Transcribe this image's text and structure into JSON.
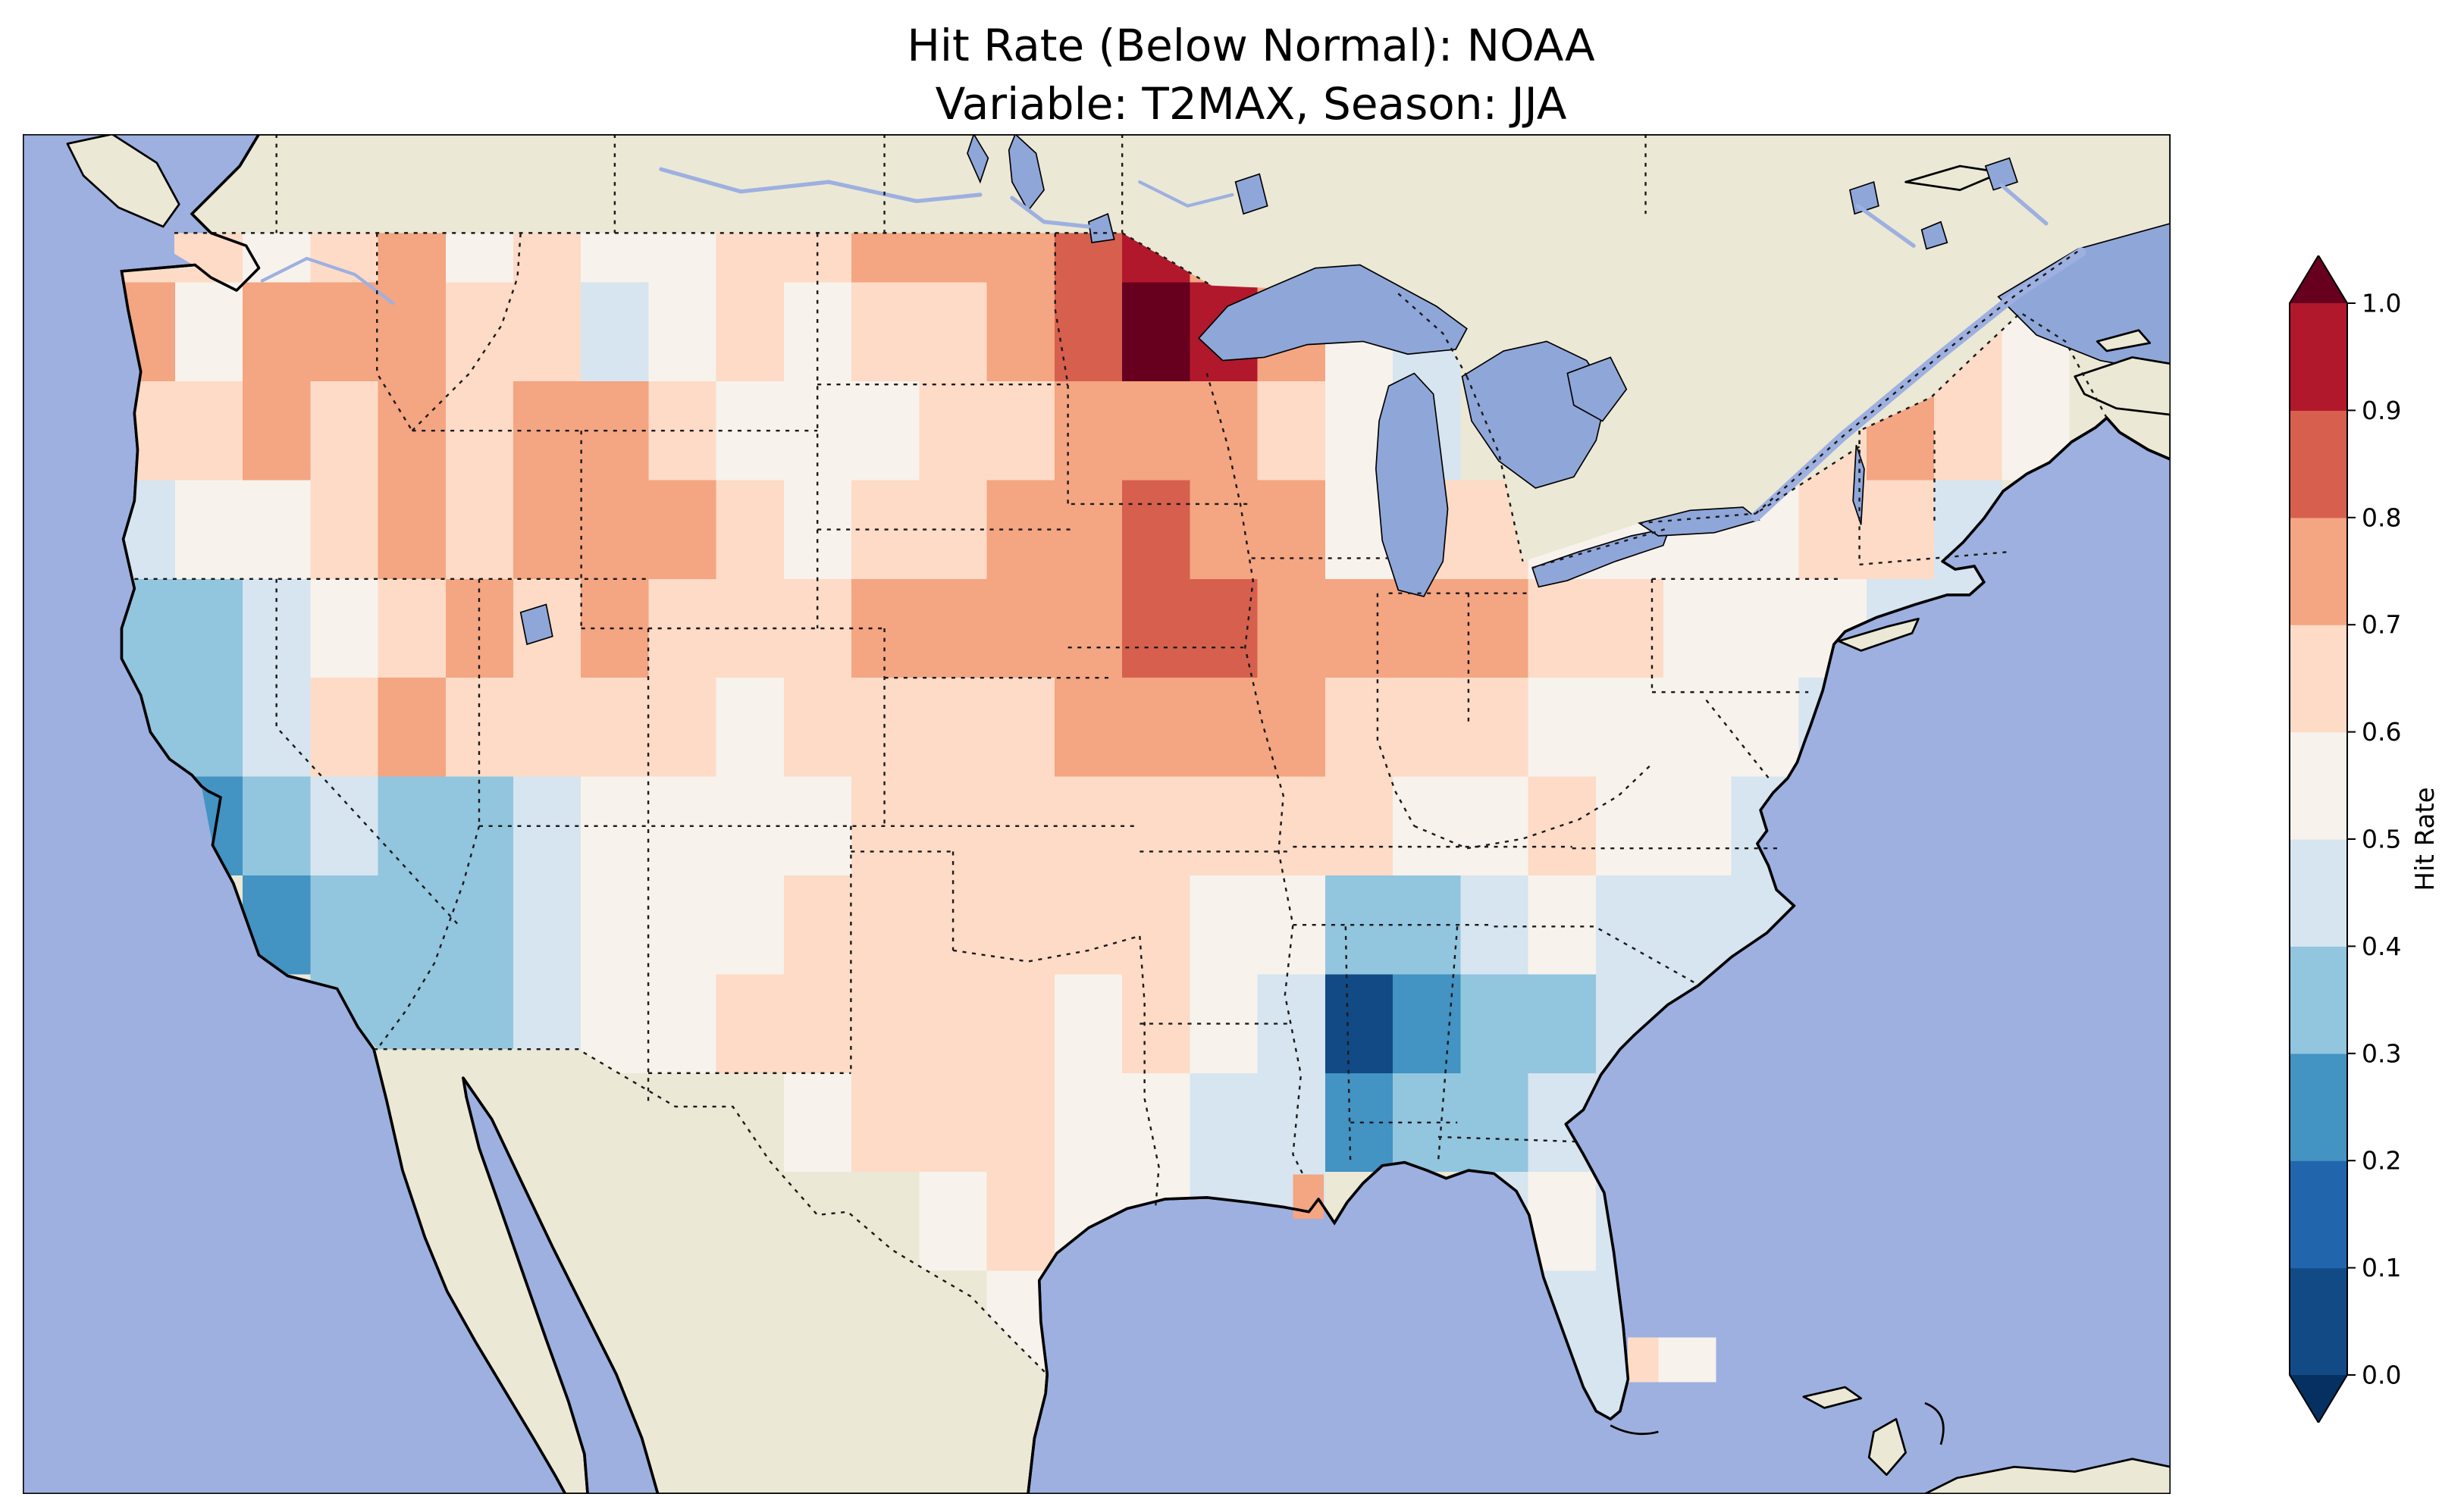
{
  "title": {
    "line1": "Hit Rate (Below Normal): NOAA",
    "line2": "Variable: T2MAX, Season: JJA"
  },
  "colorbar": {
    "label": "Hit Rate",
    "ticks": [
      "1.0",
      "0.9",
      "0.8",
      "0.7",
      "0.6",
      "0.5",
      "0.4",
      "0.3",
      "0.2",
      "0.1",
      "0.0"
    ],
    "band_colors_low_to_high": [
      "#114a85",
      "#2166ac",
      "#4393c3",
      "#92c5de",
      "#d6e5f0",
      "#f7f2ec",
      "#fddbc7",
      "#f4a582",
      "#d6604d",
      "#b2182b"
    ],
    "under_color": "#053061",
    "over_color": "#67001f"
  },
  "map_colors": {
    "ocean": "#9db0e0",
    "land": "#ebe8d5",
    "lake": "#8fa6d9",
    "coastline": "#000000"
  },
  "chart_data": {
    "type": "heatmap",
    "title": "Hit Rate (Below Normal): NOAA",
    "subtitle": "Variable: T2MAX, Season: JJA",
    "variable": "T2MAX",
    "season": "JJA",
    "source": "NOAA",
    "colorbar_label": "Hit Rate",
    "value_range": [
      0.0,
      1.0
    ],
    "legend_position": "right",
    "grid": {
      "lon_west": -125,
      "lon_step": 2,
      "lat_north": 50,
      "lat_step": 2,
      "values": [
        [
          0.65,
          0.6,
          0.55,
          0.65,
          0.7,
          0.55,
          0.6,
          0.55,
          0.5,
          0.6,
          0.65,
          0.7,
          0.7,
          0.75,
          0.85,
          0.9,
          0.7,
          null,
          null,
          null,
          null,
          null,
          null,
          null,
          null,
          null,
          null,
          null,
          null
        ],
        [
          0.7,
          0.55,
          0.7,
          0.75,
          0.7,
          0.65,
          0.6,
          0.45,
          0.55,
          0.6,
          0.55,
          0.6,
          0.65,
          0.7,
          0.8,
          1.0,
          0.9,
          0.7,
          0.5,
          0.4,
          null,
          null,
          null,
          null,
          null,
          null,
          null,
          0.6,
          0.55
        ],
        [
          0.6,
          0.65,
          0.7,
          0.6,
          0.7,
          0.65,
          0.7,
          0.7,
          0.6,
          0.55,
          0.5,
          0.55,
          0.6,
          0.65,
          0.7,
          0.75,
          0.7,
          0.6,
          0.55,
          0.4,
          null,
          null,
          null,
          null,
          0.5,
          0.6,
          0.75,
          0.65,
          0.55
        ],
        [
          0.45,
          0.5,
          0.5,
          0.65,
          0.7,
          0.65,
          0.7,
          0.75,
          0.7,
          0.6,
          0.55,
          0.6,
          0.65,
          0.7,
          0.75,
          0.8,
          0.75,
          0.7,
          0.55,
          0.6,
          0.6,
          0.55,
          0.5,
          0.55,
          0.55,
          0.6,
          0.6,
          0.45,
          null
        ],
        [
          0.3,
          0.3,
          0.4,
          0.55,
          0.65,
          0.7,
          0.65,
          0.7,
          0.65,
          0.6,
          0.65,
          0.7,
          0.7,
          0.7,
          0.75,
          0.8,
          0.8,
          0.75,
          0.7,
          0.7,
          0.7,
          0.65,
          0.6,
          0.55,
          0.55,
          0.5,
          0.45,
          0.4,
          null
        ],
        [
          0.3,
          0.3,
          0.45,
          0.6,
          0.7,
          0.65,
          0.6,
          0.65,
          0.6,
          0.55,
          0.6,
          0.6,
          0.65,
          0.65,
          0.7,
          0.75,
          0.75,
          0.7,
          0.65,
          0.6,
          0.6,
          0.55,
          0.55,
          0.5,
          0.5,
          0.45,
          null,
          null,
          null
        ],
        [
          0.35,
          0.25,
          0.35,
          0.4,
          0.3,
          0.3,
          0.45,
          0.55,
          0.55,
          0.55,
          0.55,
          0.6,
          0.6,
          0.6,
          0.6,
          0.65,
          0.6,
          0.6,
          0.6,
          0.55,
          0.55,
          0.6,
          0.55,
          0.5,
          0.45,
          0.4,
          null,
          null,
          null
        ],
        [
          null,
          null,
          0.28,
          0.3,
          0.3,
          0.35,
          0.45,
          0.5,
          0.55,
          0.55,
          0.6,
          0.6,
          0.6,
          0.6,
          0.6,
          0.6,
          0.55,
          0.5,
          0.35,
          0.3,
          0.4,
          0.5,
          0.45,
          0.4,
          0.45,
          null,
          null,
          null,
          null
        ],
        [
          null,
          null,
          null,
          0.3,
          0.35,
          0.35,
          0.45,
          0.5,
          0.55,
          0.6,
          0.6,
          0.65,
          0.6,
          0.6,
          0.55,
          0.6,
          0.5,
          0.45,
          0.05,
          0.2,
          0.3,
          0.35,
          0.4,
          0.4,
          null,
          null,
          null,
          null,
          null
        ],
        [
          null,
          null,
          null,
          null,
          null,
          null,
          null,
          null,
          null,
          null,
          0.55,
          0.6,
          0.6,
          0.6,
          0.55,
          0.5,
          0.45,
          0.4,
          0.2,
          0.3,
          0.35,
          0.4,
          0.4,
          null,
          null,
          null,
          null,
          null,
          null
        ],
        [
          null,
          null,
          null,
          null,
          null,
          null,
          null,
          null,
          null,
          null,
          null,
          null,
          0.55,
          0.6,
          0.55,
          0.5,
          0.45,
          0.45,
          null,
          null,
          0.45,
          0.5,
          0.45,
          null,
          null,
          null,
          null,
          null,
          null
        ],
        [
          null,
          null,
          null,
          null,
          null,
          null,
          null,
          null,
          null,
          null,
          null,
          null,
          null,
          0.55,
          0.5,
          null,
          null,
          null,
          null,
          null,
          null,
          0.45,
          0.45,
          null,
          null,
          null,
          null,
          null,
          null
        ],
        [
          null,
          null,
          null,
          null,
          null,
          null,
          null,
          null,
          null,
          null,
          null,
          null,
          null,
          0.5,
          null,
          null,
          null,
          null,
          null,
          null,
          null,
          0.45,
          0.4,
          null,
          null,
          null,
          null,
          null,
          null
        ]
      ]
    },
    "extra_cells": [
      {
        "lon": -79.6,
        "lat": 26.2,
        "value": 0.68
      },
      {
        "lon": -78.7,
        "lat": 26.2,
        "value": 0.55
      },
      {
        "lon": -77.9,
        "lat": 26.2,
        "value": 0.5
      },
      {
        "lon": -89.5,
        "lat": 29.5,
        "value": 0.72
      }
    ]
  }
}
